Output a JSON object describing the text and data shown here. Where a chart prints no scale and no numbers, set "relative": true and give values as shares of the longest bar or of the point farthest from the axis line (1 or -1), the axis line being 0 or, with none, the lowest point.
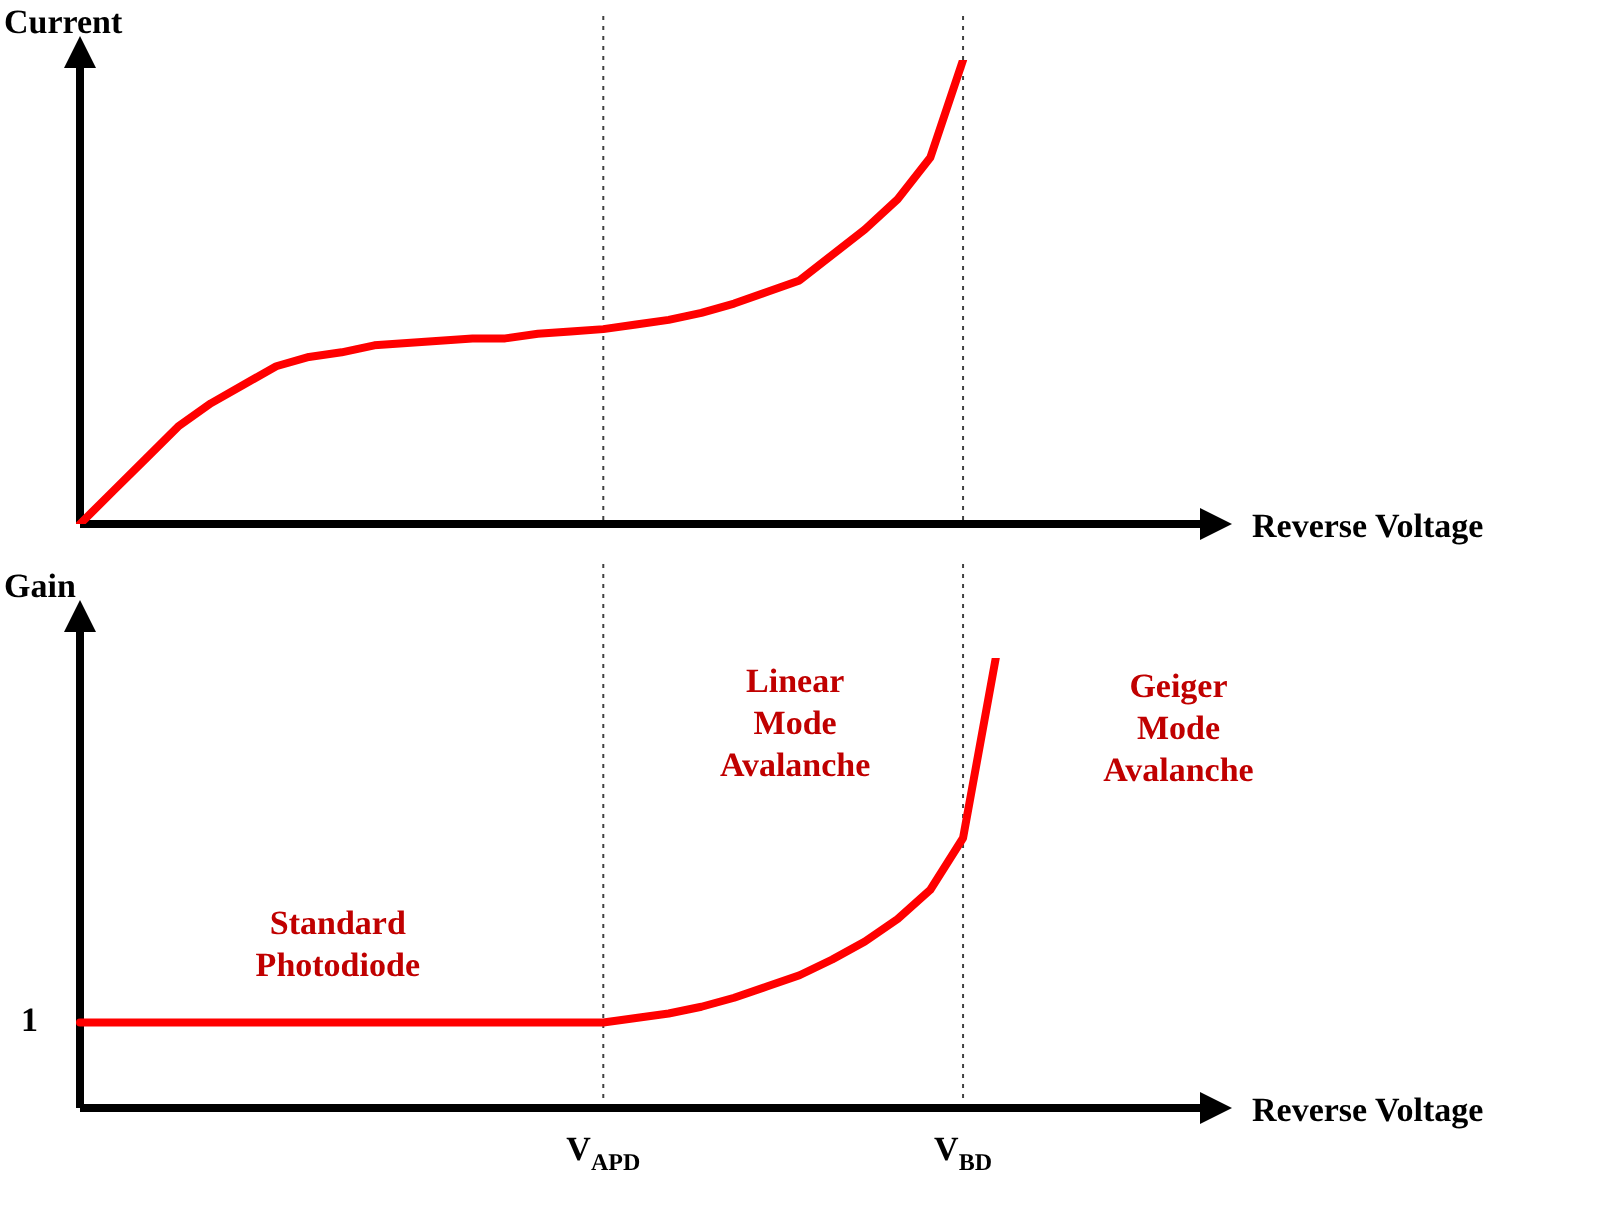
{
  "chart_data": [
    {
      "type": "line",
      "relative": true,
      "ylabel": "Current",
      "xlabel": "Reverse Voltage",
      "legend": false,
      "marker": "none",
      "line_style": "solid",
      "tick_labels": false,
      "categories": [
        null,
        null,
        null,
        null,
        null,
        null,
        null,
        null,
        null,
        null,
        null,
        null,
        null,
        null,
        null,
        null,
        "V$_{APD}$",
        null,
        null,
        null,
        null,
        null,
        null,
        null,
        null,
        null,
        null,
        "V$_{BD}$",
        null,
        null,
        null,
        null,
        null,
        null,
        null
      ],
      "series": [
        {
          "color": "#ff0000",
          "values": [
            0,
            0.07,
            0.14,
            0.21,
            0.26,
            0.3,
            0.34,
            0.36,
            0.37,
            0.385,
            0.39,
            0.395,
            0.4,
            0.4,
            0.41,
            0.415,
            0.42,
            0.43,
            0.44,
            0.455,
            0.475,
            0.5,
            0.525,
            0.58,
            0.635,
            0.7,
            0.79,
            1,
            null,
            null,
            null,
            null,
            null,
            null,
            null
          ]
        }
      ],
      "ref_lines": [
        {
          "axis": "x",
          "value": "V$_{APD}$",
          "line_style": "dotted",
          "color": "#404040"
        },
        {
          "axis": "x",
          "value": "V$_{BD}$",
          "line_style": "dotted",
          "color": "#404040"
        }
      ]
    },
    {
      "type": "line",
      "relative": true,
      "ylabel": "Gain",
      "xlabel": "Reverse Voltage",
      "legend": false,
      "marker": "none",
      "line_style": "solid",
      "categories": [
        null,
        null,
        null,
        null,
        null,
        null,
        null,
        null,
        null,
        null,
        null,
        null,
        null,
        null,
        null,
        null,
        "V$_{APD}$",
        null,
        null,
        null,
        null,
        null,
        null,
        null,
        null,
        null,
        null,
        "V$_{BD}$",
        null,
        null,
        null,
        null,
        null,
        null,
        null
      ],
      "series": [
        {
          "color": "#ff0000",
          "values": [
            0.19,
            0.19,
            0.19,
            0.19,
            0.19,
            0.19,
            0.19,
            0.19,
            0.19,
            0.19,
            0.19,
            0.19,
            0.19,
            0.19,
            0.19,
            0.19,
            0.19,
            0.2,
            0.21,
            0.225,
            0.245,
            0.27,
            0.295,
            0.33,
            0.37,
            0.42,
            0.485,
            0.6,
            1,
            null,
            null,
            null,
            null,
            null,
            null
          ]
        }
      ],
      "ref_lines": [
        {
          "axis": "x",
          "value": "V$_{APD}$",
          "line_style": "dotted",
          "color": "#404040"
        },
        {
          "axis": "x",
          "value": "V$_{BD}$",
          "line_style": "dotted",
          "color": "#404040"
        }
      ],
      "annotations": [
        "1",
        "Standard\nPhotodiode",
        "Linear\nMode\nAvalanche",
        "Geiger\nMode\nAvalanche"
      ]
    }
  ]
}
